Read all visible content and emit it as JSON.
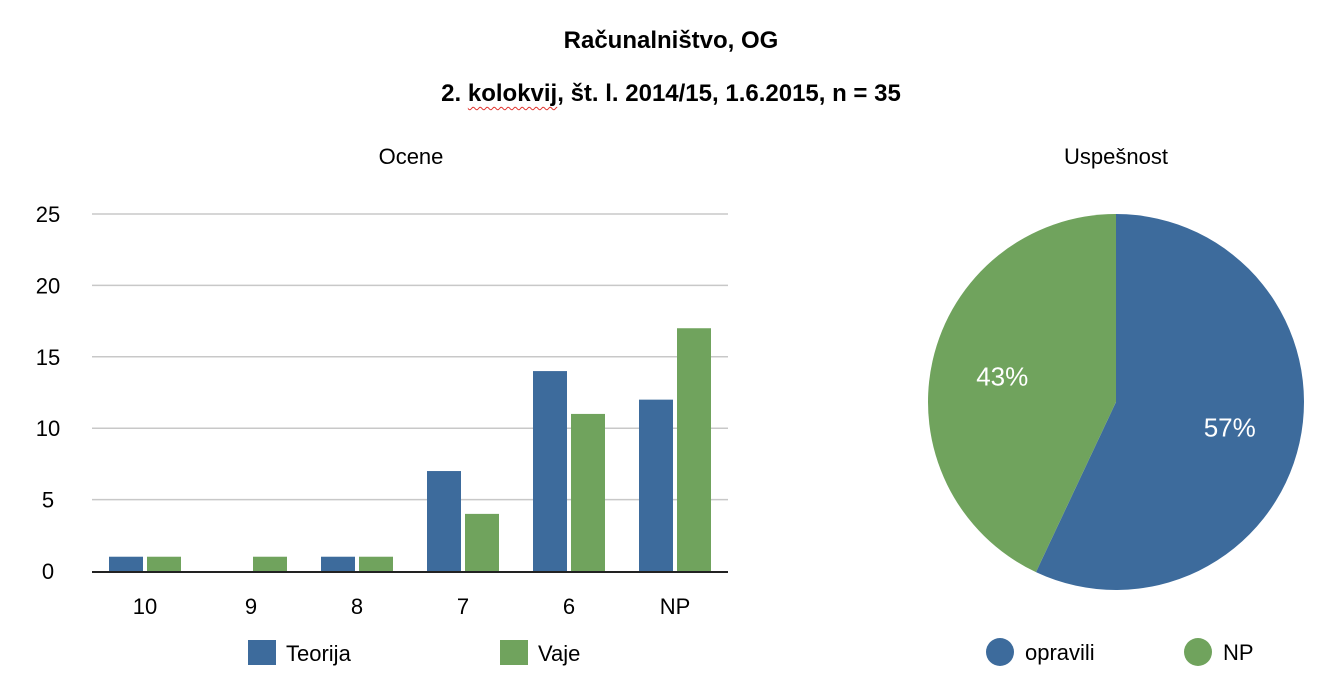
{
  "title": {
    "line1": "Računalništvo, OG",
    "line2_num": "2. ",
    "line2_word": "kolokvij",
    "line2_rest": ", št. l. 2014/15, 1.6.2015, n = 35"
  },
  "colors": {
    "blue": "#3d6b9c",
    "green": "#70a35d",
    "grid": "#c8c8c8",
    "axis": "#222222"
  },
  "chart_data": [
    {
      "type": "bar",
      "title": "Ocene",
      "categories": [
        "10",
        "9",
        "8",
        "7",
        "6",
        "NP"
      ],
      "series": [
        {
          "name": "Teorija",
          "values": [
            1,
            0,
            1,
            7,
            14,
            12
          ],
          "color": "#3d6b9c"
        },
        {
          "name": "Vaje",
          "values": [
            1,
            1,
            1,
            4,
            11,
            17
          ],
          "color": "#70a35d"
        }
      ],
      "yticks": [
        "0",
        "5",
        "10",
        "15",
        "20",
        "25"
      ],
      "ylim": [
        0,
        25
      ],
      "grid": true,
      "legend": "bottom"
    },
    {
      "type": "pie",
      "title": "Uspešnost",
      "slices": [
        {
          "label": "opravili",
          "value": 57,
          "display": "57%",
          "color": "#3d6b9c"
        },
        {
          "label": "NP",
          "value": 43,
          "display": "43%",
          "color": "#70a35d"
        }
      ],
      "legend": "bottom"
    }
  ]
}
